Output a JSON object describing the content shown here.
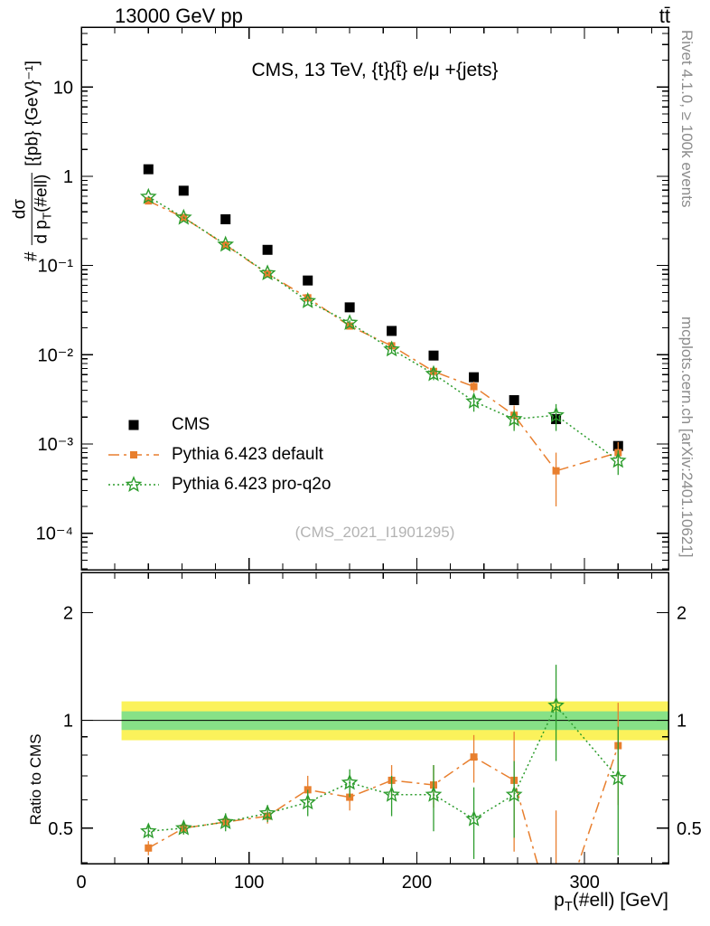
{
  "header": {
    "left": "13000 GeV pp",
    "right": "tt̄"
  },
  "title": "CMS, 13 TeV, {t}{t̄} e/μ +{jets}",
  "watermark": "(CMS_2021_I1901295)",
  "side_notes": {
    "top": "Rivet 4.1.0, ≥ 100k events",
    "bottom": "mcplots.cern.ch [arXiv:2401.10621]"
  },
  "axes": {
    "y_main": {
      "prefix": "#",
      "numerator": "dσ",
      "den1": "d p",
      "den_sub": "T",
      "den2": "(#ell)",
      "units": "[{pb} {GeV}⁻¹]"
    },
    "y_ratio": "Ratio to CMS",
    "x": {
      "p": "p",
      "sub": "T",
      "rest": "(#ell) [GeV]"
    }
  },
  "chart_data": {
    "type": "scatter",
    "x_range": [
      0,
      350
    ],
    "x_ticks": [
      0,
      100,
      200,
      300
    ],
    "x_tick_labels": [
      "0",
      "100",
      "200",
      "300"
    ],
    "x_minor_step": 20,
    "main_panel": {
      "scale": "log",
      "y_range": [
        3.9e-05,
        47
      ],
      "y_ticks": [
        {
          "v": 10,
          "label": "10"
        },
        {
          "v": 1,
          "label": "1"
        },
        {
          "v": 0.1,
          "label": "10⁻¹"
        },
        {
          "v": 0.01,
          "label": "10⁻²"
        },
        {
          "v": 0.001,
          "label": "10⁻³"
        },
        {
          "v": 0.0001,
          "label": "10⁻⁴"
        }
      ]
    },
    "ratio_panel": {
      "scale": "log",
      "y_range": [
        0.398,
        2.59
      ],
      "ref": 1,
      "y_ticks": [
        {
          "v": 0.5,
          "label": "0.5"
        },
        {
          "v": 1,
          "label": "1"
        },
        {
          "v": 2,
          "label": "2"
        }
      ],
      "band_x": [
        24,
        350
      ],
      "bands": [
        {
          "lo": 0.88,
          "hi": 1.13,
          "color": "#fbf25b"
        },
        {
          "lo": 0.94,
          "hi": 1.06,
          "color": "#87e187"
        }
      ]
    },
    "x": [
      40,
      61,
      86,
      111,
      135,
      160,
      185,
      210,
      234,
      258,
      283,
      320
    ],
    "series": [
      {
        "name": "CMS",
        "role": "data",
        "color": "#000000",
        "marker": "square-filled",
        "y": [
          1.2,
          0.69,
          0.33,
          0.15,
          0.068,
          0.034,
          0.0185,
          0.0098,
          0.0056,
          0.0031,
          0.0019,
          0.00095
        ],
        "yerr": [
          0.1,
          0.055,
          0.026,
          0.012,
          0.0055,
          0.0028,
          0.0015,
          0.0008,
          0.00045,
          0.00025,
          0.00016,
          8e-05
        ]
      },
      {
        "name": "Pythia 6.423 default",
        "role": "mc",
        "color": "#e87f2e",
        "marker": "square-small",
        "line": "dashdot",
        "y": [
          0.53,
          0.345,
          0.17,
          0.081,
          0.0435,
          0.021,
          0.0126,
          0.0065,
          0.0044,
          0.0021,
          0.0005,
          0.0008
        ],
        "yerr": [
          0.012,
          0.008,
          0.004,
          0.002,
          0.003,
          0.0015,
          0.001,
          0.0008,
          0.0006,
          0.0006,
          0.0003,
          0.00025
        ],
        "ratio": [
          0.44,
          0.5,
          0.52,
          0.54,
          0.64,
          0.61,
          0.68,
          0.66,
          0.79,
          0.68,
          0.26,
          0.85
        ],
        "ratio_err": [
          0.02,
          0.02,
          0.02,
          0.025,
          0.06,
          0.05,
          0.07,
          0.09,
          0.12,
          0.25,
          0.3,
          0.27
        ]
      },
      {
        "name": "Pythia 6.423 pro-q2o",
        "role": "mc",
        "color": "#2c9c2c",
        "marker": "star-open",
        "line": "dotted",
        "y": [
          0.59,
          0.345,
          0.172,
          0.082,
          0.04,
          0.0228,
          0.0115,
          0.0061,
          0.003,
          0.0019,
          0.0021,
          0.00065
        ],
        "yerr": [
          0.012,
          0.008,
          0.004,
          0.002,
          0.003,
          0.0015,
          0.001,
          0.0009,
          0.0007,
          0.0005,
          0.0007,
          0.0002
        ],
        "ratio": [
          0.49,
          0.5,
          0.52,
          0.55,
          0.59,
          0.67,
          0.62,
          0.62,
          0.53,
          0.62,
          1.1,
          0.69
        ],
        "ratio_err": [
          0.02,
          0.02,
          0.03,
          0.03,
          0.05,
          0.06,
          0.08,
          0.13,
          0.12,
          0.15,
          0.33,
          0.27
        ]
      }
    ]
  }
}
